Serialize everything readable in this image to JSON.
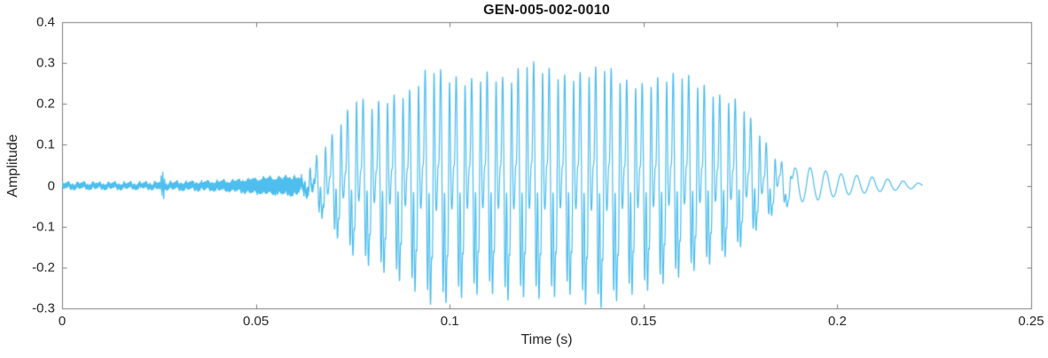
{
  "figure": {
    "background": "#ffffff",
    "axis_color": "#7f7f7f",
    "text_color": "#262626"
  },
  "chart_data": {
    "type": "line",
    "title": "GEN-005-002-0010",
    "xlabel": "Time (s)",
    "ylabel": "Amplitude",
    "xlim": [
      0,
      0.25
    ],
    "ylim": [
      -0.3,
      0.4
    ],
    "grid": false,
    "box": true,
    "line_color": "#4DBEEE",
    "line_width": 1.2,
    "xticks": {
      "values": [
        0,
        0.05,
        0.1,
        0.15,
        0.2,
        0.25
      ],
      "labels": [
        "0",
        "0.05",
        "0.1",
        "0.15",
        "0.2",
        "0.25"
      ]
    },
    "yticks": {
      "values": [
        -0.3,
        -0.2,
        -0.1,
        0,
        0.1,
        0.2,
        0.3,
        0.4
      ],
      "labels": [
        "-0.3",
        "-0.2",
        "-0.1",
        "0",
        "0.1",
        "0.2",
        "0.3",
        "0.4"
      ]
    },
    "signal": {
      "description": "speech waveform: silence with small click at 0.026 s, voiced burst 0.065-0.185 s peaking ~0.31 / -0.30 near 0.12 s, decaying tail to 0.222 s",
      "f0_hz": 250,
      "duration_s": 0.222,
      "click_time_s": 0.026,
      "click_amplitude": 0.03,
      "noise_envelope": [
        [
          0,
          0.006
        ],
        [
          0.02,
          0.006
        ],
        [
          0.03,
          0.008
        ],
        [
          0.04,
          0.01
        ],
        [
          0.045,
          0.013
        ],
        [
          0.05,
          0.018
        ],
        [
          0.055,
          0.02
        ],
        [
          0.06,
          0.022
        ],
        [
          0.063,
          0.012
        ],
        [
          0.07,
          0
        ]
      ],
      "upper_envelope": [
        [
          0.06,
          0.005
        ],
        [
          0.063,
          0.02
        ],
        [
          0.065,
          0.06
        ],
        [
          0.068,
          0.1
        ],
        [
          0.072,
          0.16
        ],
        [
          0.076,
          0.22
        ],
        [
          0.08,
          0.2
        ],
        [
          0.085,
          0.22
        ],
        [
          0.09,
          0.235
        ],
        [
          0.095,
          0.3
        ],
        [
          0.1,
          0.27
        ],
        [
          0.105,
          0.26
        ],
        [
          0.11,
          0.28
        ],
        [
          0.115,
          0.26
        ],
        [
          0.12,
          0.31
        ],
        [
          0.125,
          0.29
        ],
        [
          0.13,
          0.27
        ],
        [
          0.135,
          0.28
        ],
        [
          0.14,
          0.3
        ],
        [
          0.145,
          0.26
        ],
        [
          0.15,
          0.25
        ],
        [
          0.155,
          0.27
        ],
        [
          0.16,
          0.28
        ],
        [
          0.165,
          0.25
        ],
        [
          0.17,
          0.22
        ],
        [
          0.175,
          0.21
        ],
        [
          0.178,
          0.16
        ],
        [
          0.182,
          0.1
        ],
        [
          0.185,
          0.07
        ],
        [
          0.19,
          0.05
        ],
        [
          0.195,
          0.04
        ],
        [
          0.2,
          0.03
        ],
        [
          0.21,
          0.02
        ],
        [
          0.222,
          0.005
        ]
      ],
      "lower_envelope_abs": [
        [
          0.06,
          0.005
        ],
        [
          0.063,
          0.02
        ],
        [
          0.065,
          0.05
        ],
        [
          0.068,
          0.09
        ],
        [
          0.072,
          0.14
        ],
        [
          0.076,
          0.18
        ],
        [
          0.08,
          0.2
        ],
        [
          0.085,
          0.22
        ],
        [
          0.09,
          0.25
        ],
        [
          0.095,
          0.29
        ],
        [
          0.097,
          0.3
        ],
        [
          0.1,
          0.28
        ],
        [
          0.105,
          0.27
        ],
        [
          0.11,
          0.26
        ],
        [
          0.115,
          0.28
        ],
        [
          0.12,
          0.27
        ],
        [
          0.125,
          0.28
        ],
        [
          0.13,
          0.26
        ],
        [
          0.135,
          0.29
        ],
        [
          0.14,
          0.3
        ],
        [
          0.145,
          0.27
        ],
        [
          0.15,
          0.26
        ],
        [
          0.155,
          0.24
        ],
        [
          0.16,
          0.22
        ],
        [
          0.165,
          0.2
        ],
        [
          0.17,
          0.18
        ],
        [
          0.175,
          0.15
        ],
        [
          0.178,
          0.12
        ],
        [
          0.182,
          0.08
        ],
        [
          0.185,
          0.06
        ],
        [
          0.19,
          0.04
        ],
        [
          0.195,
          0.035
        ],
        [
          0.2,
          0.025
        ],
        [
          0.21,
          0.015
        ],
        [
          0.222,
          0.005
        ]
      ],
      "harmonics": [
        {
          "n": 1,
          "amp": 0.4,
          "phase": 0.0
        },
        {
          "n": 2,
          "amp": 0.36,
          "phase": 2.2
        },
        {
          "n": 3,
          "amp": 0.3,
          "phase": 1.1
        },
        {
          "n": 4,
          "amp": 0.22,
          "phase": 2.8
        },
        {
          "n": 5,
          "amp": 0.15,
          "phase": 0.6
        },
        {
          "n": 6,
          "amp": 0.1,
          "phase": 1.9
        },
        {
          "n": 7,
          "amp": 0.07,
          "phase": 3.0
        }
      ]
    }
  }
}
